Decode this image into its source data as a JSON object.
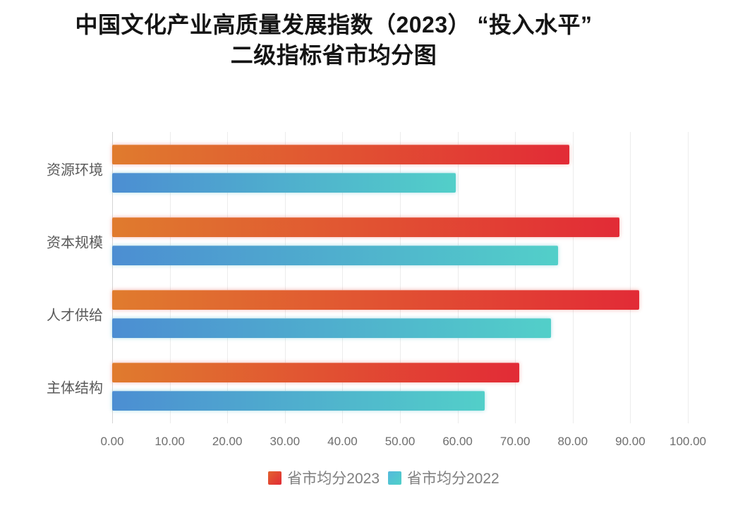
{
  "title": {
    "line1": "中国文化产业高质量发展指数（2023） “投入水平”",
    "line2": "二级指标省市均分图"
  },
  "chart_data": {
    "type": "bar",
    "orientation": "horizontal",
    "title": "中国文化产业高质量发展指数（2023）“投入水平”二级指标省市均分图",
    "categories": [
      "资源环境",
      "资本规模",
      "人才供给",
      "主体结构"
    ],
    "series": [
      {
        "name": "省市均分2023",
        "values": [
          79.4,
          88.1,
          91.5,
          70.7
        ],
        "gradient": [
          "#e07b2e",
          "#e22b36"
        ]
      },
      {
        "name": "省市均分2022",
        "values": [
          59.7,
          77.5,
          76.2,
          64.7
        ],
        "gradient": [
          "#4c8ed2",
          "#52cfc9"
        ]
      }
    ],
    "xlim": [
      0,
      100
    ],
    "x_ticks": [
      0,
      10,
      20,
      30,
      40,
      50,
      60,
      70,
      80,
      90,
      100
    ],
    "x_tick_labels": [
      "0.00",
      "10.00",
      "20.00",
      "30.00",
      "40.00",
      "50.00",
      "60.00",
      "70.00",
      "80.00",
      "90.00",
      "100.00"
    ],
    "grid": true,
    "legend_position": "bottom"
  },
  "legend": {
    "items": [
      {
        "label": "省市均分2023",
        "gradient": [
          "#e2622e",
          "#e22b36"
        ]
      },
      {
        "label": "省市均分2022",
        "gradient": [
          "#54b9dc",
          "#4fd0c8"
        ]
      }
    ]
  },
  "colors": {
    "series_2023_start": "#e07b2e",
    "series_2023_end": "#e22b36",
    "series_2022_start": "#4c8ed2",
    "series_2022_end": "#52cfc9",
    "gridline": "#ececec",
    "axis_line": "#d5d5d5",
    "title_text": "#141414",
    "category_text": "#595959",
    "tick_text": "#6e6e6e",
    "legend_text": "#7f7f7f"
  }
}
